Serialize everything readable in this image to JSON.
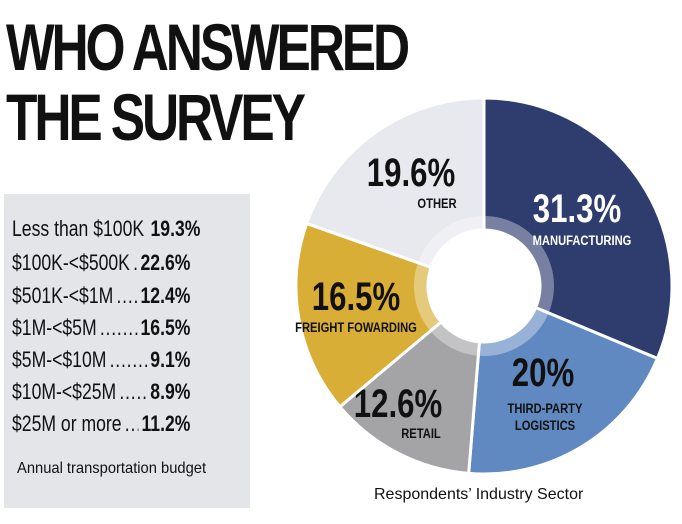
{
  "title": {
    "line1": "WHO ANSWERED",
    "line2": "THE SURVEY"
  },
  "budget": {
    "caption": "Annual transportation budget",
    "rows": [
      {
        "label": "Less than $100K",
        "value": "19.3%"
      },
      {
        "label": "$100K-<$500K",
        "value": "22.6%"
      },
      {
        "label": "$501K-<$1M",
        "value": "12.4%"
      },
      {
        "label": "$1M-<$5M",
        "value": "16.5%"
      },
      {
        "label": "$5M-<$10M",
        "value": "9.1%"
      },
      {
        "label": "$10M-<$25M",
        "value": "8.9%"
      },
      {
        "label": "$25M or more",
        "value": "11.2%"
      }
    ]
  },
  "chart_data": {
    "type": "pie",
    "title": "Respondents’ Industry Sector",
    "slices": [
      {
        "label": "MANUFACTURING",
        "value": 31.3,
        "value_text": "31.3%",
        "color": "#2e3d6e",
        "text_color": "#ffffff"
      },
      {
        "label": "THIRD-PARTY LOGISTICS",
        "value": 20,
        "value_text": "20%",
        "color": "#6089c1",
        "text_color": "#111111"
      },
      {
        "label": "RETAIL",
        "value": 12.6,
        "value_text": "12.6%",
        "color": "#a4a4a7",
        "text_color": "#111111"
      },
      {
        "label": "FREIGHT FOWARDING",
        "value": 16.5,
        "value_text": "16.5%",
        "color": "#d9ae36",
        "text_color": "#111111"
      },
      {
        "label": "OTHER",
        "value": 19.6,
        "value_text": "19.6%",
        "color": "#e8e9ef",
        "text_color": "#111111"
      }
    ]
  }
}
